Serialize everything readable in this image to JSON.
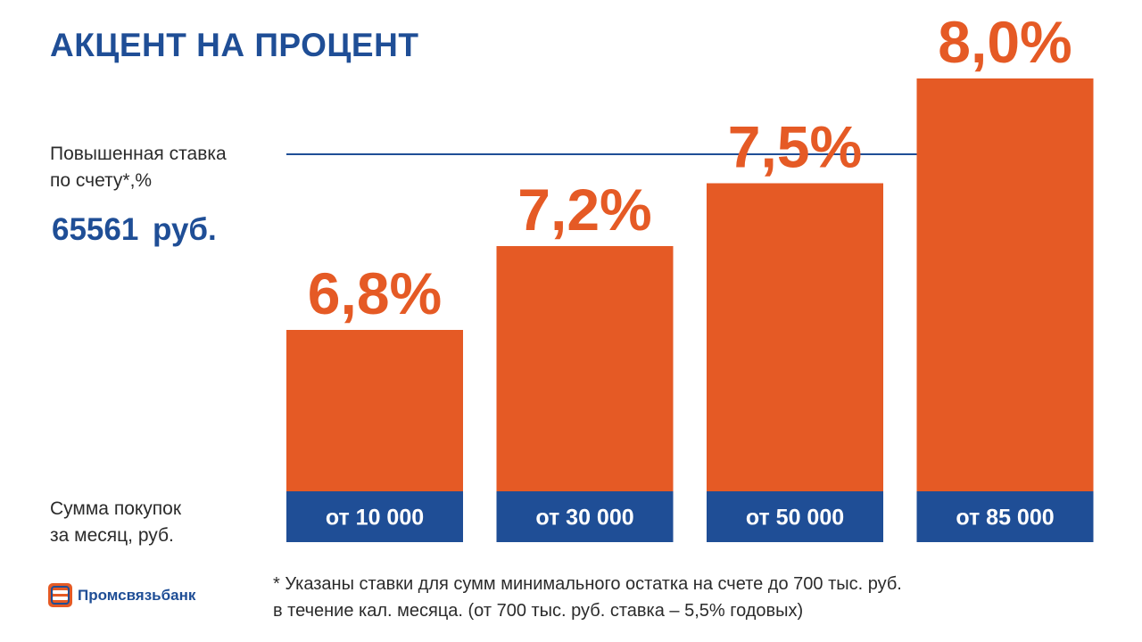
{
  "title": "АКЦЕНТ НА ПРОЦЕНТ",
  "y_axis_label": "Повышенная ставка\nпо счету*,%",
  "amount": "65561  руб.",
  "x_axis_label": "Сумма покупок\nза месяц, руб.",
  "footnote": "* Указаны ставки для сумм минимального остатка на счете до 700 тыс. руб.\n  в течение кал. месяца. (от 700 тыс. руб. ставка – 5,5% годовых)",
  "logo_text": "Промсвязьбанк",
  "colors": {
    "bar": "#e55a25",
    "category_band": "#1f4e96",
    "title": "#1f4e96",
    "reference_line": "#1f4e96"
  },
  "chart_data": {
    "type": "bar",
    "categories": [
      "от 10 000",
      "от 30 000",
      "от 50 000",
      "от 85 000"
    ],
    "values": [
      6.8,
      7.2,
      7.5,
      8.0
    ],
    "value_labels": [
      "6,8%",
      "7,2%",
      "7,5%",
      "8,0%"
    ],
    "unit": "%",
    "grid": false,
    "reference_line": true
  }
}
